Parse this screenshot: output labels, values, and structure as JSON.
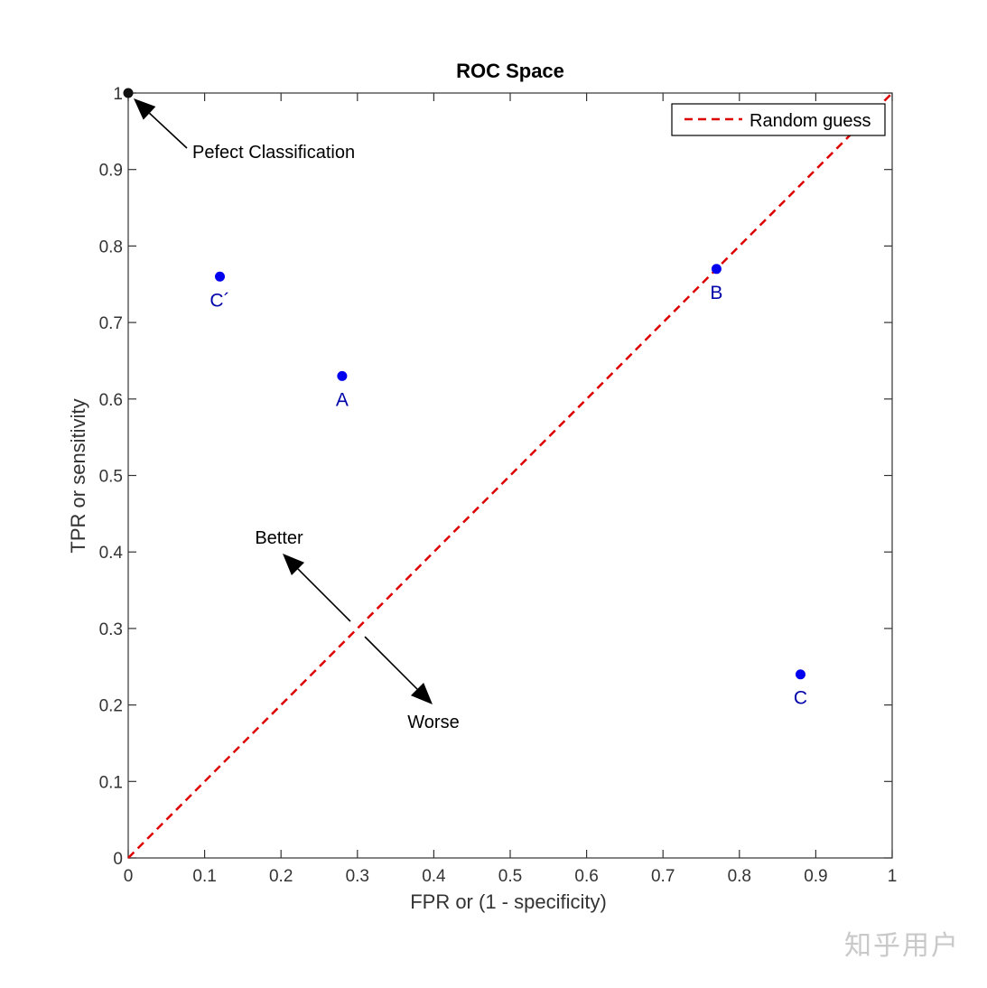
{
  "chart_data": {
    "type": "scatter",
    "title": "ROC Space",
    "xlabel": "FPR or (1 - specificity)",
    "ylabel": "TPR or sensitivity",
    "xlim": [
      0,
      1
    ],
    "ylim": [
      0,
      1
    ],
    "xticks": [
      "0",
      "0.1",
      "0.2",
      "0.3",
      "0.4",
      "0.5",
      "0.6",
      "0.7",
      "0.8",
      "0.9",
      "1"
    ],
    "yticks": [
      "0",
      "0.1",
      "0.2",
      "0.3",
      "0.4",
      "0.5",
      "0.6",
      "0.7",
      "0.8",
      "0.9",
      "1"
    ],
    "grid": false,
    "legend": {
      "position": "top-right",
      "entries": [
        "Random guess"
      ]
    },
    "reference_line": {
      "name": "Random guess",
      "x": [
        0,
        1
      ],
      "y": [
        0,
        1
      ],
      "style": "dashed",
      "color": "#dd0000"
    },
    "points": [
      {
        "label": "A",
        "x": 0.28,
        "y": 0.63
      },
      {
        "label": "B",
        "x": 0.77,
        "y": 0.77
      },
      {
        "label": "C",
        "x": 0.88,
        "y": 0.24
      },
      {
        "label": "C´",
        "x": 0.12,
        "y": 0.76
      }
    ],
    "perfect_point": {
      "x": 0,
      "y": 1
    },
    "annotations": {
      "perfect": "Pefect Classification",
      "better": "Better",
      "worse": "Worse"
    },
    "colors": {
      "points": "#0000ee",
      "labels": "#0000aa",
      "axes": "#333333",
      "perfect": "#111111"
    }
  },
  "watermark": "知乎用户"
}
